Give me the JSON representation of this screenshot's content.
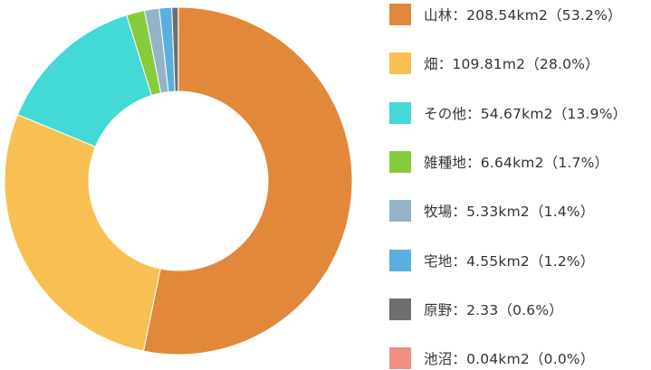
{
  "chart_data": {
    "type": "pie",
    "title": "",
    "donut": true,
    "legend_position": "right",
    "series": [
      {
        "category": "山林",
        "value": 208.54,
        "percent": 53.2,
        "color": "#E2883A",
        "label": "山林：208.54km2（53.2%）"
      },
      {
        "category": "畑",
        "value": 109.81,
        "percent": 28.0,
        "color": "#F8C052",
        "label": "畑：109.81m2（28.0%）"
      },
      {
        "category": "その他",
        "value": 54.67,
        "percent": 13.9,
        "color": "#42D9D7",
        "label": "その他：54.67km2（13.9%）"
      },
      {
        "category": "雑種地",
        "value": 6.64,
        "percent": 1.7,
        "color": "#86CB3B",
        "label": "雑種地：6.64km2（1.7%）"
      },
      {
        "category": "牧場",
        "value": 5.33,
        "percent": 1.4,
        "color": "#93B4C7",
        "label": "牧場：5.33km2（1.4%）"
      },
      {
        "category": "宅地",
        "value": 4.55,
        "percent": 1.2,
        "color": "#59B0E0",
        "label": "宅地：4.55km2（1.2%）"
      },
      {
        "category": "原野",
        "value": 2.33,
        "percent": 0.6,
        "color": "#6E6E6E",
        "label": "原野：2.33（0.6%）"
      },
      {
        "category": "池沼",
        "value": 0.04,
        "percent": 0.0,
        "color": "#F08E82",
        "label": "池沼：0.04km2（0.0%）"
      }
    ]
  }
}
